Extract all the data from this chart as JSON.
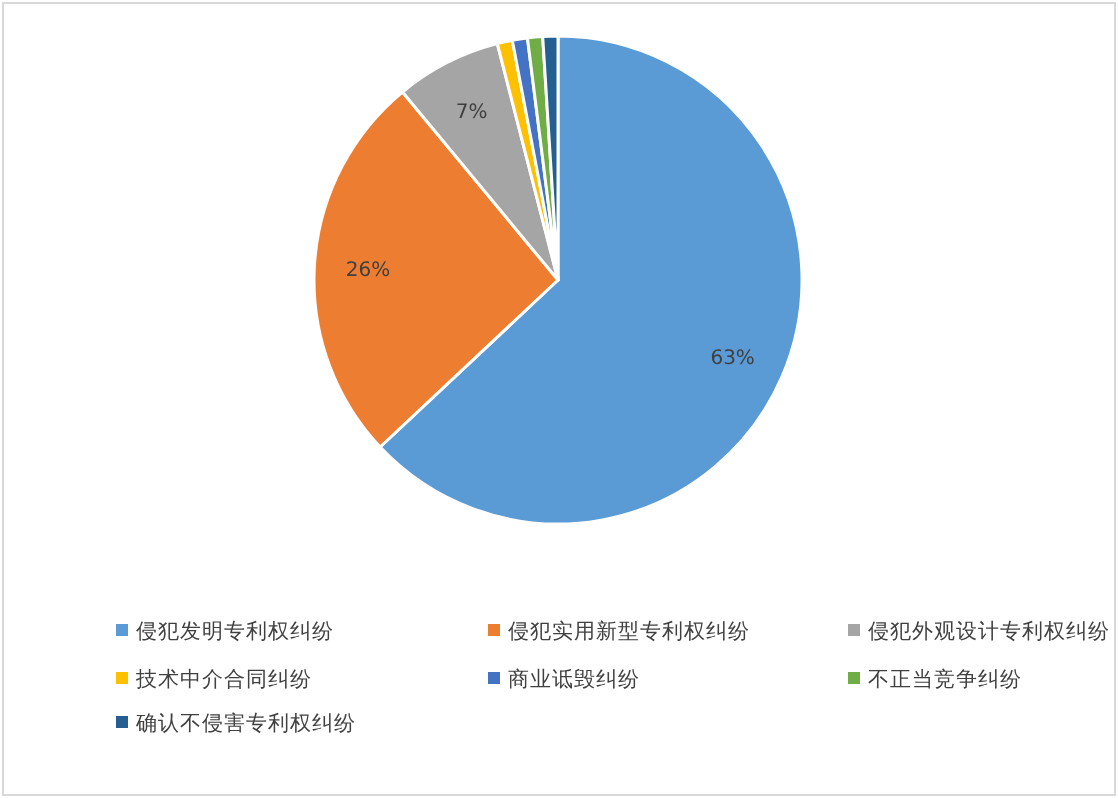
{
  "chart_data": {
    "type": "pie",
    "categories": [
      "侵犯发明专利权纠纷",
      "侵犯实用新型专利权纠纷",
      "侵犯外观设计专利权纠纷",
      "技术中介合同纠纷",
      "商业诋毁纠纷",
      "不正当竞争纠纷",
      "确认不侵害专利权纠纷"
    ],
    "values": [
      63,
      26,
      7,
      1,
      1,
      1,
      1
    ],
    "colors": [
      "#5b9bd5",
      "#ed7d31",
      "#a5a5a5",
      "#ffc000",
      "#4472c4",
      "#70ad47",
      "#255e91"
    ],
    "value_labels": [
      "63%",
      "26%",
      "7%",
      null,
      null,
      null,
      null
    ],
    "legend": "bottom"
  }
}
